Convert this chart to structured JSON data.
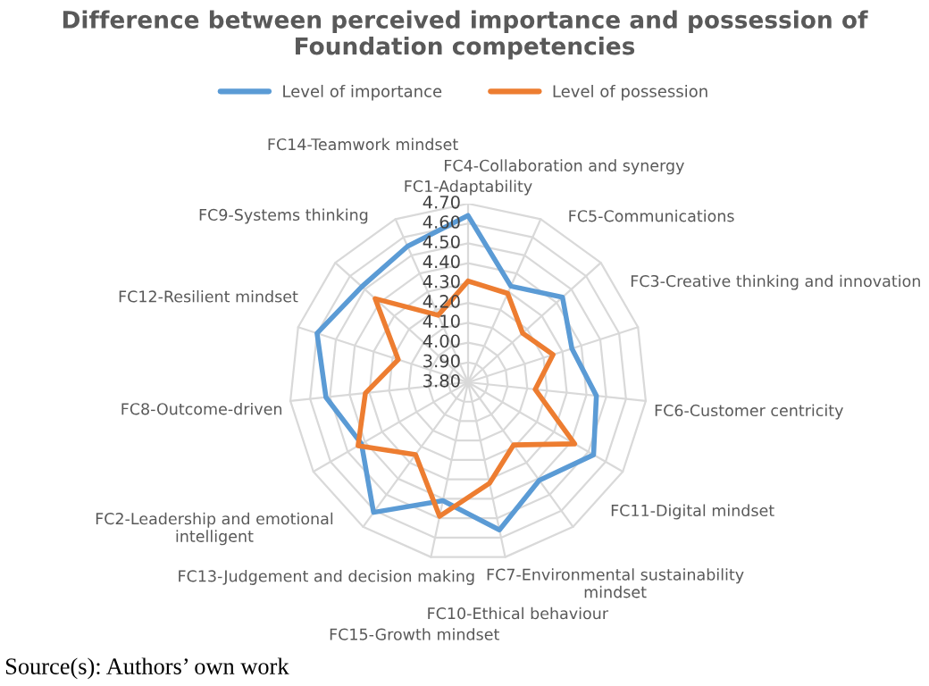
{
  "chart_data": {
    "type": "radar",
    "title": "Difference between perceived importance and possession of Foundation competencies",
    "categories": [
      "FC1-Adaptability",
      "FC4-Collaboration and synergy",
      "FC5-Communications",
      "FC3-Creative thinking and innovation",
      "FC6-Customer centricity",
      "FC11-Digital mindset",
      "FC7-Environmental sustainability\nmindset",
      "FC10-Ethical behaviour",
      "FC15-Growth mindset",
      "FC13-Judgement and decision making",
      "FC2-Leadership and emotional\nintelligent",
      "FC8-Outcome-driven",
      "FC12-Resilient mindset",
      "FC9-Systems thinking",
      "FC14-Teamwork mindset"
    ],
    "series": [
      {
        "name": "Level of importance",
        "color": "#5b9bd5",
        "values": [
          4.64,
          4.33,
          4.44,
          4.35,
          4.45,
          4.53,
          4.41,
          4.56,
          4.41,
          4.61,
          4.42,
          4.52,
          4.6,
          4.52,
          4.55
        ]
      },
      {
        "name": "Level of possession",
        "color": "#ed7d31",
        "values": [
          4.31,
          4.29,
          4.17,
          4.25,
          4.14,
          4.42,
          4.19,
          4.32,
          4.49,
          4.25,
          4.44,
          4.32,
          4.17,
          4.43,
          4.17
        ]
      }
    ],
    "ylim": [
      3.8,
      4.7
    ],
    "yticks": [
      {
        "value": 3.8,
        "label": "3.80"
      },
      {
        "value": 3.9,
        "label": "3.90"
      },
      {
        "value": 4.0,
        "label": "4.00"
      },
      {
        "value": 4.1,
        "label": "4.10"
      },
      {
        "value": 4.2,
        "label": "4.20"
      },
      {
        "value": 4.3,
        "label": "4.30"
      },
      {
        "value": 4.4,
        "label": "4.40"
      },
      {
        "value": 4.5,
        "label": "4.50"
      },
      {
        "value": 4.6,
        "label": "4.60"
      },
      {
        "value": 4.7,
        "label": "4.70"
      }
    ],
    "grid": true,
    "legend": "top",
    "annotations": [
      "Source(s): Authors’ own work"
    ]
  }
}
